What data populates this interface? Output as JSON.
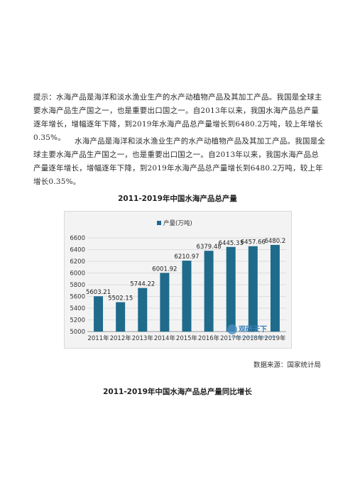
{
  "paragraphs": {
    "p1": "提示：水海产品是海洋和淡水渔业生产的水产动植物产品及其加工产品。我国是全球主要水海产品生产国之一，也是重要出口国之一。自2013年以来，我国水海产品总产量逐年增长，增幅逐年下降，到2019年水海产品总产量增长到6480.2万吨，较上年增长0.35%。",
    "p2": "水海产品是海洋和淡水渔业生产的水产动植物产品及其加工产品。我国是全球主要水海产品生产国之一，也是重要出口国之一。自2013年以来，我国水海产品总产量逐年增长，增幅逐年下降，到2019年水海产品总产量增长到6480.2万吨，较上年增长0.35%。"
  },
  "figure_title_1": "2011-2019年中国水海产品总产量",
  "figure_title_2": "2011-2019年中国水海产品总产量同比增长",
  "source_note": "数据来源：国家统计局",
  "watermark": "观研天下",
  "watermark_url": "www.chinabaogao.com",
  "colors": {
    "bar": "#1f6b8c",
    "grid": "#d6d6d6",
    "panel": "#f3f3f3"
  },
  "chart_data": {
    "type": "bar",
    "categories": [
      "2011年",
      "2012年",
      "2013年",
      "2014年",
      "2015年",
      "2016年",
      "2017年",
      "2018年",
      "2019年"
    ],
    "series": [
      {
        "name": "产量(万吨)",
        "values": [
          5603.21,
          5502.15,
          5744.22,
          6001.92,
          6210.97,
          6379.48,
          6445.33,
          6457.66,
          6480.2
        ]
      }
    ],
    "data_labels": [
      "5603.21",
      "5502.15",
      "5744.22",
      "6001.92",
      "6210.97",
      "6379.48",
      "6445.33",
      "6457.66",
      "6480.2"
    ],
    "yticks": [
      5000,
      5200,
      5400,
      5600,
      5800,
      6000,
      6200,
      6400,
      6600
    ],
    "ylim": [
      5000,
      6600
    ],
    "grid": true,
    "legend": "top"
  }
}
